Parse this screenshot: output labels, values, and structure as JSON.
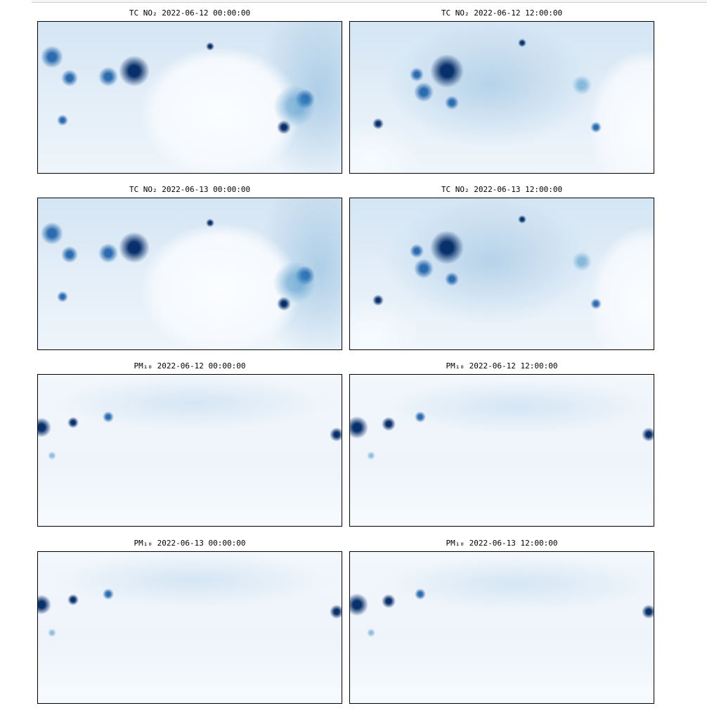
{
  "panels": [
    {
      "title": "TC NO₂ 2022-06-12 00:00:00"
    },
    {
      "title": "TC NO₂ 2022-06-12 12:00:00"
    },
    {
      "title": "TC NO₂ 2022-06-13 00:00:00"
    },
    {
      "title": "TC NO₂ 2022-06-13 12:00:00"
    },
    {
      "title": "PM₁₀ 2022-06-12 00:00:00"
    },
    {
      "title": "PM₁₀ 2022-06-12 12:00:00"
    },
    {
      "title": "PM₁₀ 2022-06-13 00:00:00"
    },
    {
      "title": "PM₁₀ 2022-06-13 12:00:00"
    }
  ]
}
